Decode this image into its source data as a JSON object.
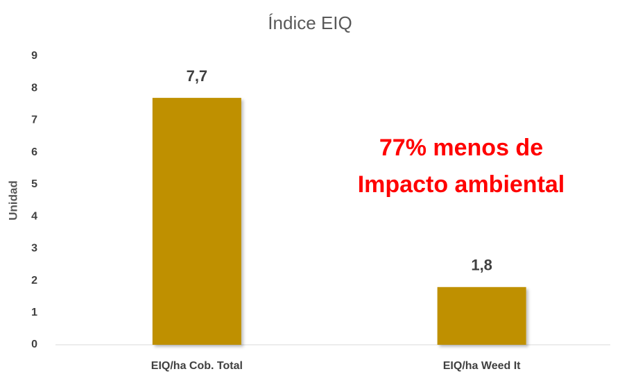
{
  "chart_data": {
    "type": "bar",
    "title": "Índice EIQ",
    "y_label": "Unidad",
    "categories": [
      "EIQ/ha Cob. Total",
      "EIQ/ha Weed It"
    ],
    "values": [
      7.7,
      1.8
    ],
    "value_labels": [
      "7,7",
      "1,8"
    ],
    "color": "#bf9000",
    "ylim": [
      0,
      9
    ],
    "yticks": [
      0,
      1,
      2,
      3,
      4,
      5,
      6,
      7,
      8,
      9
    ],
    "grid": false,
    "annotations": [
      "77% menos de",
      "Impacto ambiental"
    ]
  }
}
